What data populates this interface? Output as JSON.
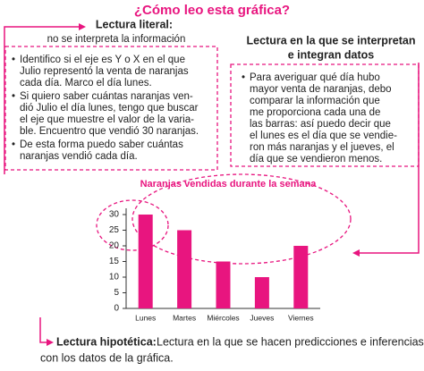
{
  "title": "¿Cómo leo esta gráfica?",
  "literal": {
    "heading": "Lectura literal:",
    "subheading": "no se interpreta la  información",
    "bullets": [
      [
        "Identifico si el eje es Y o X en el que",
        "Julio representó la venta de naranjas",
        "cada día. Marco el día lunes."
      ],
      [
        "Si quiero saber cuántas naranjas ven-",
        "dió  Julio el día lunes, tengo que buscar",
        "el eje que muestre el valor de la varia-",
        "ble. Encuentro que vendió 30 naranjas."
      ],
      [
        "De esta forma puedo saber cuántas",
        "naranjas vendió cada día."
      ]
    ]
  },
  "interpretive": {
    "heading": [
      "Lectura en la que se interpretan",
      "e integran datos"
    ],
    "bullets": [
      [
        "Para averiguar qué día hubo",
        "mayor venta de naranjas, debo",
        "comparar la información que",
        "me proporciona cada una de",
        "las barras: así puedo decir que",
        "el lunes es el día que se vendie-",
        "ron más naranjas y el jueves, el",
        "día que se vendieron menos."
      ]
    ]
  },
  "hypothetical": {
    "heading": "Lectura hipotética:",
    "lines": [
      "Lectura en la que se hacen predicciones e inferencias",
      "con los datos de la gráfica."
    ]
  },
  "chart_data": {
    "type": "bar",
    "title": "Naranjas vendidas durante la semana",
    "categories": [
      "Lunes",
      "Martes",
      "Miércoles",
      "Jueves",
      "Viernes"
    ],
    "values": [
      30,
      25,
      15,
      10,
      20
    ],
    "color": "#e8157f",
    "ylim": [
      0,
      32
    ],
    "yticks": [
      0,
      5,
      10,
      15,
      20,
      25,
      30
    ],
    "grid": false
  }
}
